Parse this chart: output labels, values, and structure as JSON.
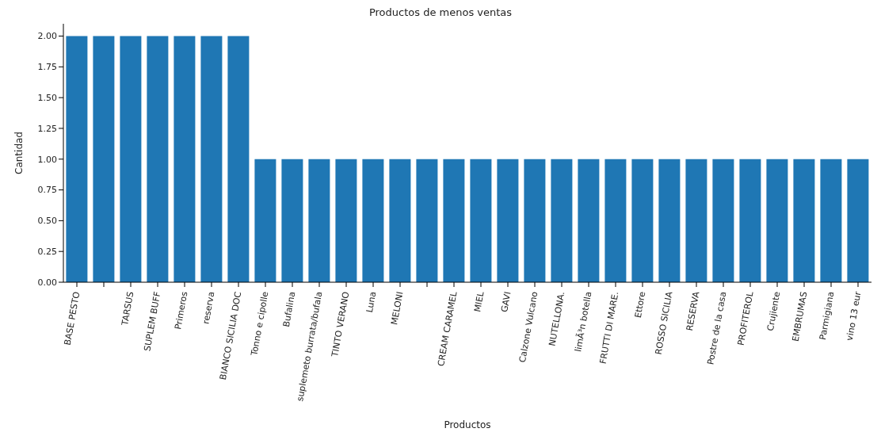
{
  "chart_data": {
    "type": "bar",
    "title": "Productos de menos ventas",
    "xlabel": "Productos",
    "ylabel": "Cantidad",
    "categories": [
      "BASE PESTO",
      null,
      "TARSUS",
      "SUPLEM BUFF",
      "Primeros",
      "reserva",
      "BIANCO SICILIA DOC",
      "Tonno e cipolle",
      "Bufalina",
      "suplemeto burrata/bufala",
      "TINTO VERANO",
      "Luna",
      "MELONI",
      null,
      "CREAM CARAMEL",
      "MIEL",
      "GAVI",
      "Calzone Vulcano",
      "NUTELLONA.",
      "limÃ³n botella",
      "FRUTTI DI MARE.",
      "Ettore",
      "ROSSO SICILIA",
      "RESERVA",
      "Postre de la casa",
      "PROFITEROL",
      "Crujiente",
      "EMBRUMAS",
      "Parmigiana",
      "vino 13 eur"
    ],
    "values": [
      2,
      2,
      2,
      2,
      2,
      2,
      2,
      1,
      1,
      1,
      1,
      1,
      1,
      1,
      1,
      1,
      1,
      1,
      1,
      1,
      1,
      1,
      1,
      1,
      1,
      1,
      1,
      1,
      1,
      1
    ],
    "color": "#1f77b4",
    "ylim": [
      0,
      2.1
    ],
    "yticks": [
      {
        "value": 0,
        "label": "0.00"
      },
      {
        "value": 0.25,
        "label": "0.25"
      },
      {
        "value": 0.5,
        "label": "0.50"
      },
      {
        "value": 0.75,
        "label": "0.75"
      },
      {
        "value": 1,
        "label": "1.00"
      },
      {
        "value": 1.25,
        "label": "1.25"
      },
      {
        "value": 1.5,
        "label": "1.50"
      },
      {
        "value": 1.75,
        "label": "1.75"
      },
      {
        "value": 2,
        "label": "2.00"
      }
    ],
    "grid": false
  }
}
